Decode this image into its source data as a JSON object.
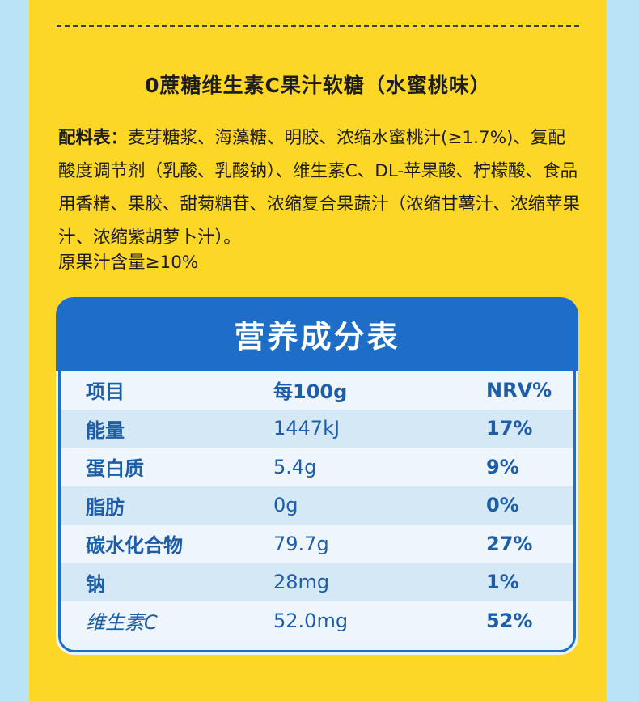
{
  "product_title": "0蔗糖维生素C果汁软糖（水蜜桃味）",
  "ingredients": {
    "label": "配料表：",
    "text": "麦芽糖浆、海藻糖、明胶、浓缩水蜜桃汁(≥1.7%)、复配酸度调节剂（乳酸、乳酸钠）、维生素C、DL-苹果酸、柠檬酸、食品用香精、果胶、甜菊糖苷、浓缩复合果蔬汁（浓缩甘薯汁、浓缩苹果汁、浓缩紫胡萝卜汁）。"
  },
  "juice_content": "原果汁含量≥10%",
  "nutrition": {
    "title": "营养成分表",
    "headers": [
      "项目",
      "每100g",
      "NRV%"
    ],
    "rows": [
      {
        "item": "能量",
        "value": "1447kJ",
        "nrv": "17%"
      },
      {
        "item": "蛋白质",
        "value": "5.4g",
        "nrv": "9%"
      },
      {
        "item": "脂肪",
        "value": "0g",
        "nrv": "0%"
      },
      {
        "item": "碳水化合物",
        "value": "79.7g",
        "nrv": "27%"
      },
      {
        "item": "钠",
        "value": "28mg",
        "nrv": "1%"
      },
      {
        "item": "维生素C",
        "value": "52.0mg",
        "nrv": "52%"
      }
    ]
  },
  "colors": {
    "panel_yellow": "#fcd726",
    "side_blue": "#b9e3f6",
    "table_blue": "#1e6ec7",
    "text_blue": "#1e5ea8"
  }
}
